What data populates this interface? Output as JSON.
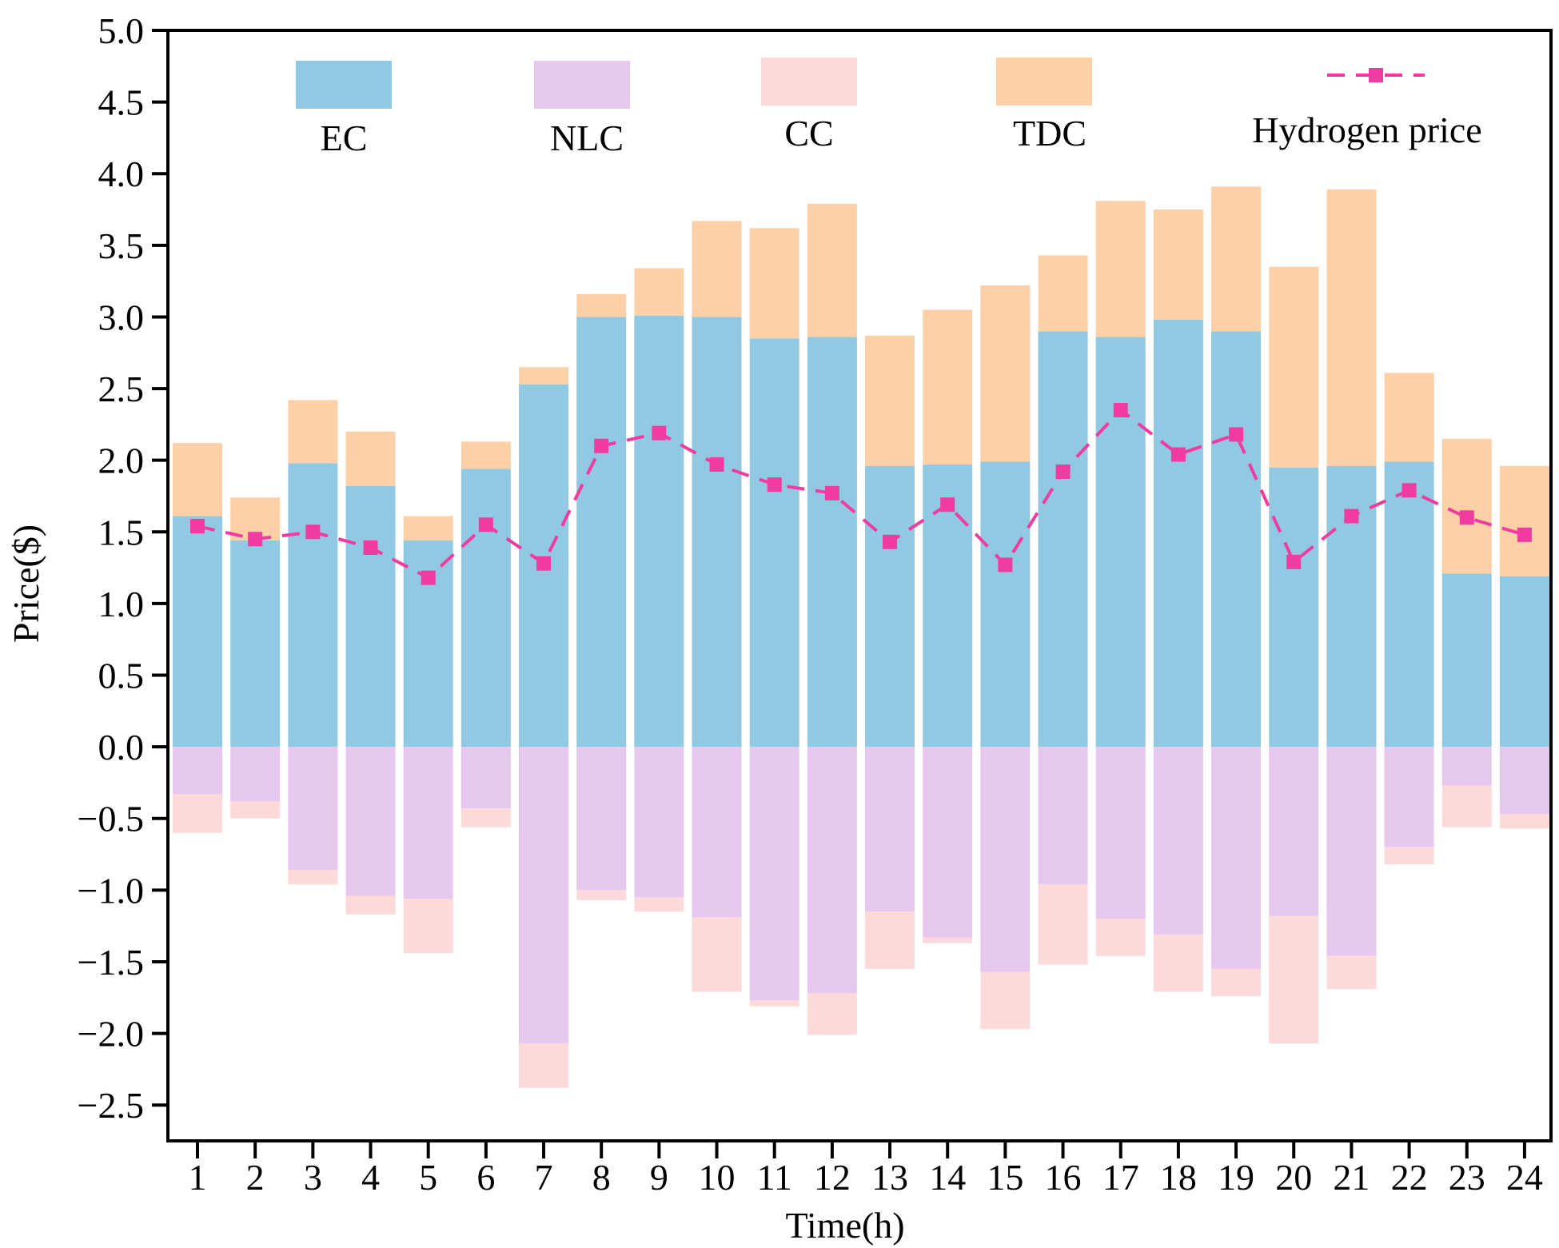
{
  "chart_data": {
    "type": "bar",
    "stacked": true,
    "title": "",
    "xlabel": "Time(h)",
    "ylabel": "Price($)",
    "ylim": [
      -2.75,
      5.0
    ],
    "yticks": [
      "5.0",
      "4.5",
      "4.0",
      "3.5",
      "3.0",
      "2.5",
      "2.0",
      "1.5",
      "1.0",
      "0.5",
      "0.0",
      "−0.5",
      "−1.0",
      "−1.5",
      "−2.0",
      "−2.5"
    ],
    "ytick_values": [
      5.0,
      4.5,
      4.0,
      3.5,
      3.0,
      2.5,
      2.0,
      1.5,
      1.0,
      0.5,
      0.0,
      -0.5,
      -1.0,
      -1.5,
      -2.0,
      -2.5
    ],
    "categories": [
      "1",
      "2",
      "3",
      "4",
      "5",
      "6",
      "7",
      "8",
      "9",
      "10",
      "11",
      "12",
      "13",
      "14",
      "15",
      "16",
      "17",
      "18",
      "19",
      "20",
      "21",
      "22",
      "23",
      "24"
    ],
    "legend_position": "top",
    "grid": false,
    "series": [
      {
        "name": "EC",
        "kind": "bar",
        "color": "#92c9e2",
        "values": [
          1.61,
          1.44,
          1.98,
          1.82,
          1.44,
          1.94,
          2.53,
          3.0,
          3.01,
          3.0,
          2.85,
          2.86,
          1.96,
          1.97,
          1.99,
          2.9,
          2.86,
          2.98,
          2.9,
          1.95,
          1.96,
          1.99,
          1.21,
          1.19
        ]
      },
      {
        "name": "TDC",
        "kind": "bar",
        "color": "#fdd0a8",
        "values": [
          0.51,
          0.3,
          0.44,
          0.38,
          0.17,
          0.19,
          0.12,
          0.16,
          0.33,
          0.67,
          0.77,
          0.93,
          0.91,
          1.08,
          1.23,
          0.53,
          0.95,
          0.77,
          1.01,
          1.4,
          1.93,
          0.62,
          0.94,
          0.77
        ]
      },
      {
        "name": "NLC",
        "kind": "bar",
        "color": "#e6c8ef",
        "values": [
          -0.33,
          -0.38,
          -0.86,
          -1.04,
          -1.06,
          -0.43,
          -2.07,
          -1.0,
          -1.05,
          -1.19,
          -1.77,
          -1.72,
          -1.15,
          -1.33,
          -1.57,
          -0.96,
          -1.2,
          -1.31,
          -1.55,
          -1.18,
          -1.46,
          -0.7,
          -0.27,
          -0.47
        ]
      },
      {
        "name": "CC",
        "kind": "bar",
        "color": "#fddada",
        "values": [
          -0.27,
          -0.12,
          -0.1,
          -0.13,
          -0.38,
          -0.13,
          -0.31,
          -0.07,
          -0.1,
          -0.52,
          -0.04,
          -0.29,
          -0.4,
          -0.04,
          -0.4,
          -0.56,
          -0.26,
          -0.4,
          -0.19,
          -0.89,
          -0.23,
          -0.12,
          -0.29,
          -0.1
        ]
      },
      {
        "name": "Hydrogen price",
        "kind": "line",
        "color": "#f03ca0",
        "values": [
          1.54,
          1.45,
          1.5,
          1.39,
          1.18,
          1.55,
          1.28,
          2.1,
          2.19,
          1.97,
          1.83,
          1.77,
          1.43,
          1.69,
          1.27,
          1.92,
          2.35,
          2.04,
          2.18,
          1.29,
          1.61,
          1.79,
          1.6,
          1.48
        ]
      }
    ],
    "legend_order": [
      "EC",
      "NLC",
      "CC",
      "TDC",
      "Hydrogen price"
    ]
  }
}
